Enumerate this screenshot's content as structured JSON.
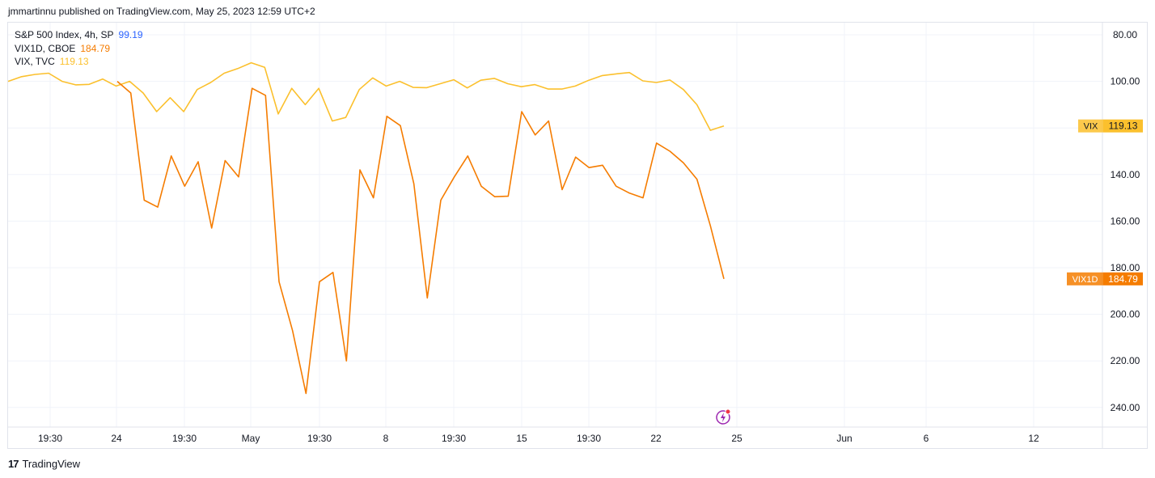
{
  "header": {
    "published_text": "jmmartinnu published on TradingView.com, May 25, 2023 12:59 UTC+2"
  },
  "legend": [
    {
      "name": "S&P 500 Index, 4h, SP",
      "value": "99.19",
      "color": "#2962ff"
    },
    {
      "name": "VIX1D, CBOE",
      "value": "184.79",
      "color": "#f57c00"
    },
    {
      "name": "VIX, TVC",
      "value": "119.13",
      "color": "#fbc02d"
    }
  ],
  "footer": {
    "brand": "TradingView"
  },
  "chart_data": {
    "type": "line",
    "yaxis": {
      "ticks": [
        "80.00",
        "100.00",
        "120.00",
        "140.00",
        "160.00",
        "180.00",
        "200.00",
        "220.00",
        "240.00"
      ],
      "inverted": true,
      "ylim": [
        74,
        248
      ]
    },
    "xaxis": {
      "ticks": [
        "19:30",
        "24",
        "19:30",
        "May",
        "19:30",
        "8",
        "19:30",
        "15",
        "19:30",
        "22",
        "25",
        "Jun",
        "6",
        "12"
      ]
    },
    "grid": true,
    "series": [
      {
        "name": "VIX",
        "color": "#fbc02d",
        "last_label": "119.13",
        "values": [
          100,
          98,
          97,
          96.5,
          100,
          101.5,
          101.3,
          99,
          102,
          100,
          105,
          113,
          107,
          113,
          103.5,
          100.5,
          96.5,
          94.5,
          92,
          94,
          114,
          103,
          110,
          103,
          117,
          115.5,
          103.5,
          98.5,
          102,
          100,
          102.6,
          102.7,
          101,
          99.3,
          102.8,
          99.5,
          98.7,
          101,
          102.3,
          101.4,
          103.3,
          103.3,
          102,
          99.5,
          97.5,
          96.8,
          96.2,
          99.8,
          100.5,
          99.4,
          103.5,
          110,
          121,
          119.13
        ]
      },
      {
        "name": "VIX1D",
        "color": "#f57c00",
        "last_label": "184.79",
        "values": [
          100,
          105,
          151,
          154,
          132,
          145,
          134.5,
          163,
          134,
          141,
          103,
          106,
          186,
          207,
          234,
          186,
          182,
          220,
          138,
          150,
          115,
          119,
          144,
          193,
          151,
          141,
          132,
          145,
          149.5,
          149.3,
          113,
          123,
          117,
          146.5,
          132.5,
          137,
          136,
          145,
          148,
          150,
          126.5,
          130,
          135,
          142,
          162,
          184.79
        ]
      }
    ]
  }
}
